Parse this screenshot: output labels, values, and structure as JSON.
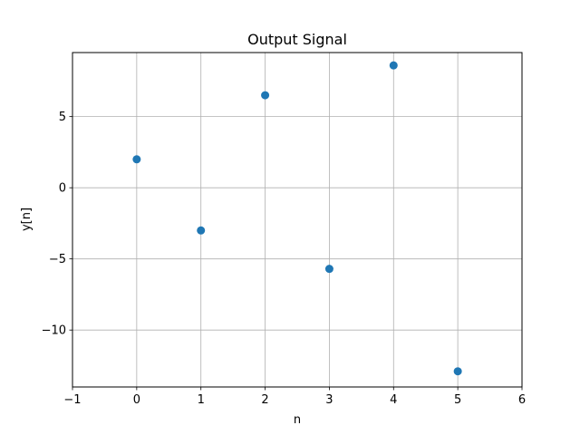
{
  "chart_data": {
    "type": "scatter",
    "title": "Output Signal",
    "xlabel": "n",
    "ylabel": "y[n]",
    "xlim": [
      -1,
      6
    ],
    "ylim": [
      -14,
      9.5
    ],
    "xticks": [
      -1,
      0,
      1,
      2,
      3,
      4,
      5,
      6
    ],
    "xtick_labels": [
      "−1",
      "0",
      "1",
      "2",
      "3",
      "4",
      "5",
      "6"
    ],
    "yticks": [
      -10,
      -5,
      0,
      5
    ],
    "ytick_labels": [
      "−10",
      "−5",
      "0",
      "5"
    ],
    "grid": true,
    "marker_color": "#1f77b4",
    "series": [
      {
        "x": [
          0,
          1,
          2,
          3,
          4,
          5
        ],
        "values": [
          2.0,
          -3.0,
          6.5,
          -5.7,
          8.6,
          -12.9
        ]
      }
    ]
  }
}
